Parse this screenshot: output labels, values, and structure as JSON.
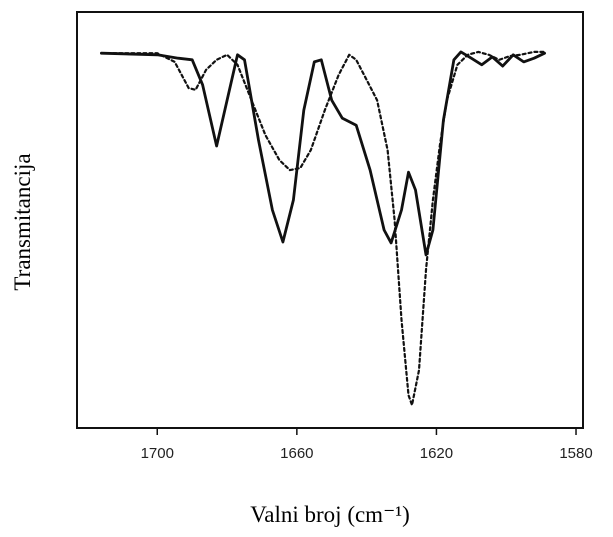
{
  "chart_data": {
    "type": "line",
    "x_label": "Valni broj (cm⁻¹)",
    "y_label": "Transmitancija",
    "xlim": [
      1723,
      1578
    ],
    "xticks": [
      1700,
      1660,
      1620,
      1580
    ],
    "ylim": [
      0,
      100
    ],
    "series": [
      {
        "color": "#111111",
        "dash": false,
        "x": [
          1716,
          1700,
          1694,
          1690,
          1687,
          1683,
          1680,
          1677,
          1675,
          1671,
          1667,
          1664,
          1661,
          1658,
          1655,
          1653,
          1650,
          1647,
          1643,
          1639,
          1635,
          1633,
          1630,
          1628,
          1626,
          1623,
          1621,
          1618,
          1615,
          1613,
          1610,
          1607,
          1604,
          1601,
          1598,
          1595,
          1592,
          1589
        ],
        "values": [
          90.1,
          89.7,
          88.9,
          88.5,
          82.5,
          67.8,
          78.8,
          89.7,
          88.5,
          69.2,
          52.4,
          44.7,
          54.8,
          76.4,
          88.0,
          88.5,
          78.8,
          74.5,
          72.8,
          62.0,
          47.6,
          44.5,
          52.4,
          61.5,
          57.2,
          41.6,
          47.6,
          74.0,
          88.5,
          90.4,
          88.9,
          87.3,
          89.2,
          87.0,
          89.7,
          88.0,
          88.9,
          90.1
        ]
      },
      {
        "color": "#111111",
        "dash": true,
        "x": [
          1716,
          1700,
          1695,
          1691,
          1689,
          1686,
          1683,
          1680,
          1677,
          1673,
          1669,
          1665,
          1662,
          1659,
          1656,
          1652,
          1648,
          1645,
          1643,
          1640,
          1637,
          1634,
          1632,
          1630,
          1628,
          1627,
          1625,
          1623,
          1621,
          1619,
          1617,
          1614,
          1611,
          1608,
          1605,
          1602,
          1599,
          1596,
          1592,
          1589
        ],
        "values": [
          90.1,
          90.1,
          88.0,
          81.7,
          81.3,
          86.1,
          88.5,
          89.7,
          87.3,
          78.8,
          70.4,
          64.4,
          62.0,
          62.5,
          66.8,
          76.4,
          84.9,
          89.7,
          88.5,
          83.7,
          78.8,
          66.8,
          50.0,
          26.0,
          7.9,
          5.5,
          13.9,
          38.0,
          54.8,
          68.0,
          78.8,
          87.3,
          89.7,
          90.4,
          89.7,
          88.5,
          89.4,
          89.7,
          90.4,
          90.4
        ]
      }
    ]
  }
}
